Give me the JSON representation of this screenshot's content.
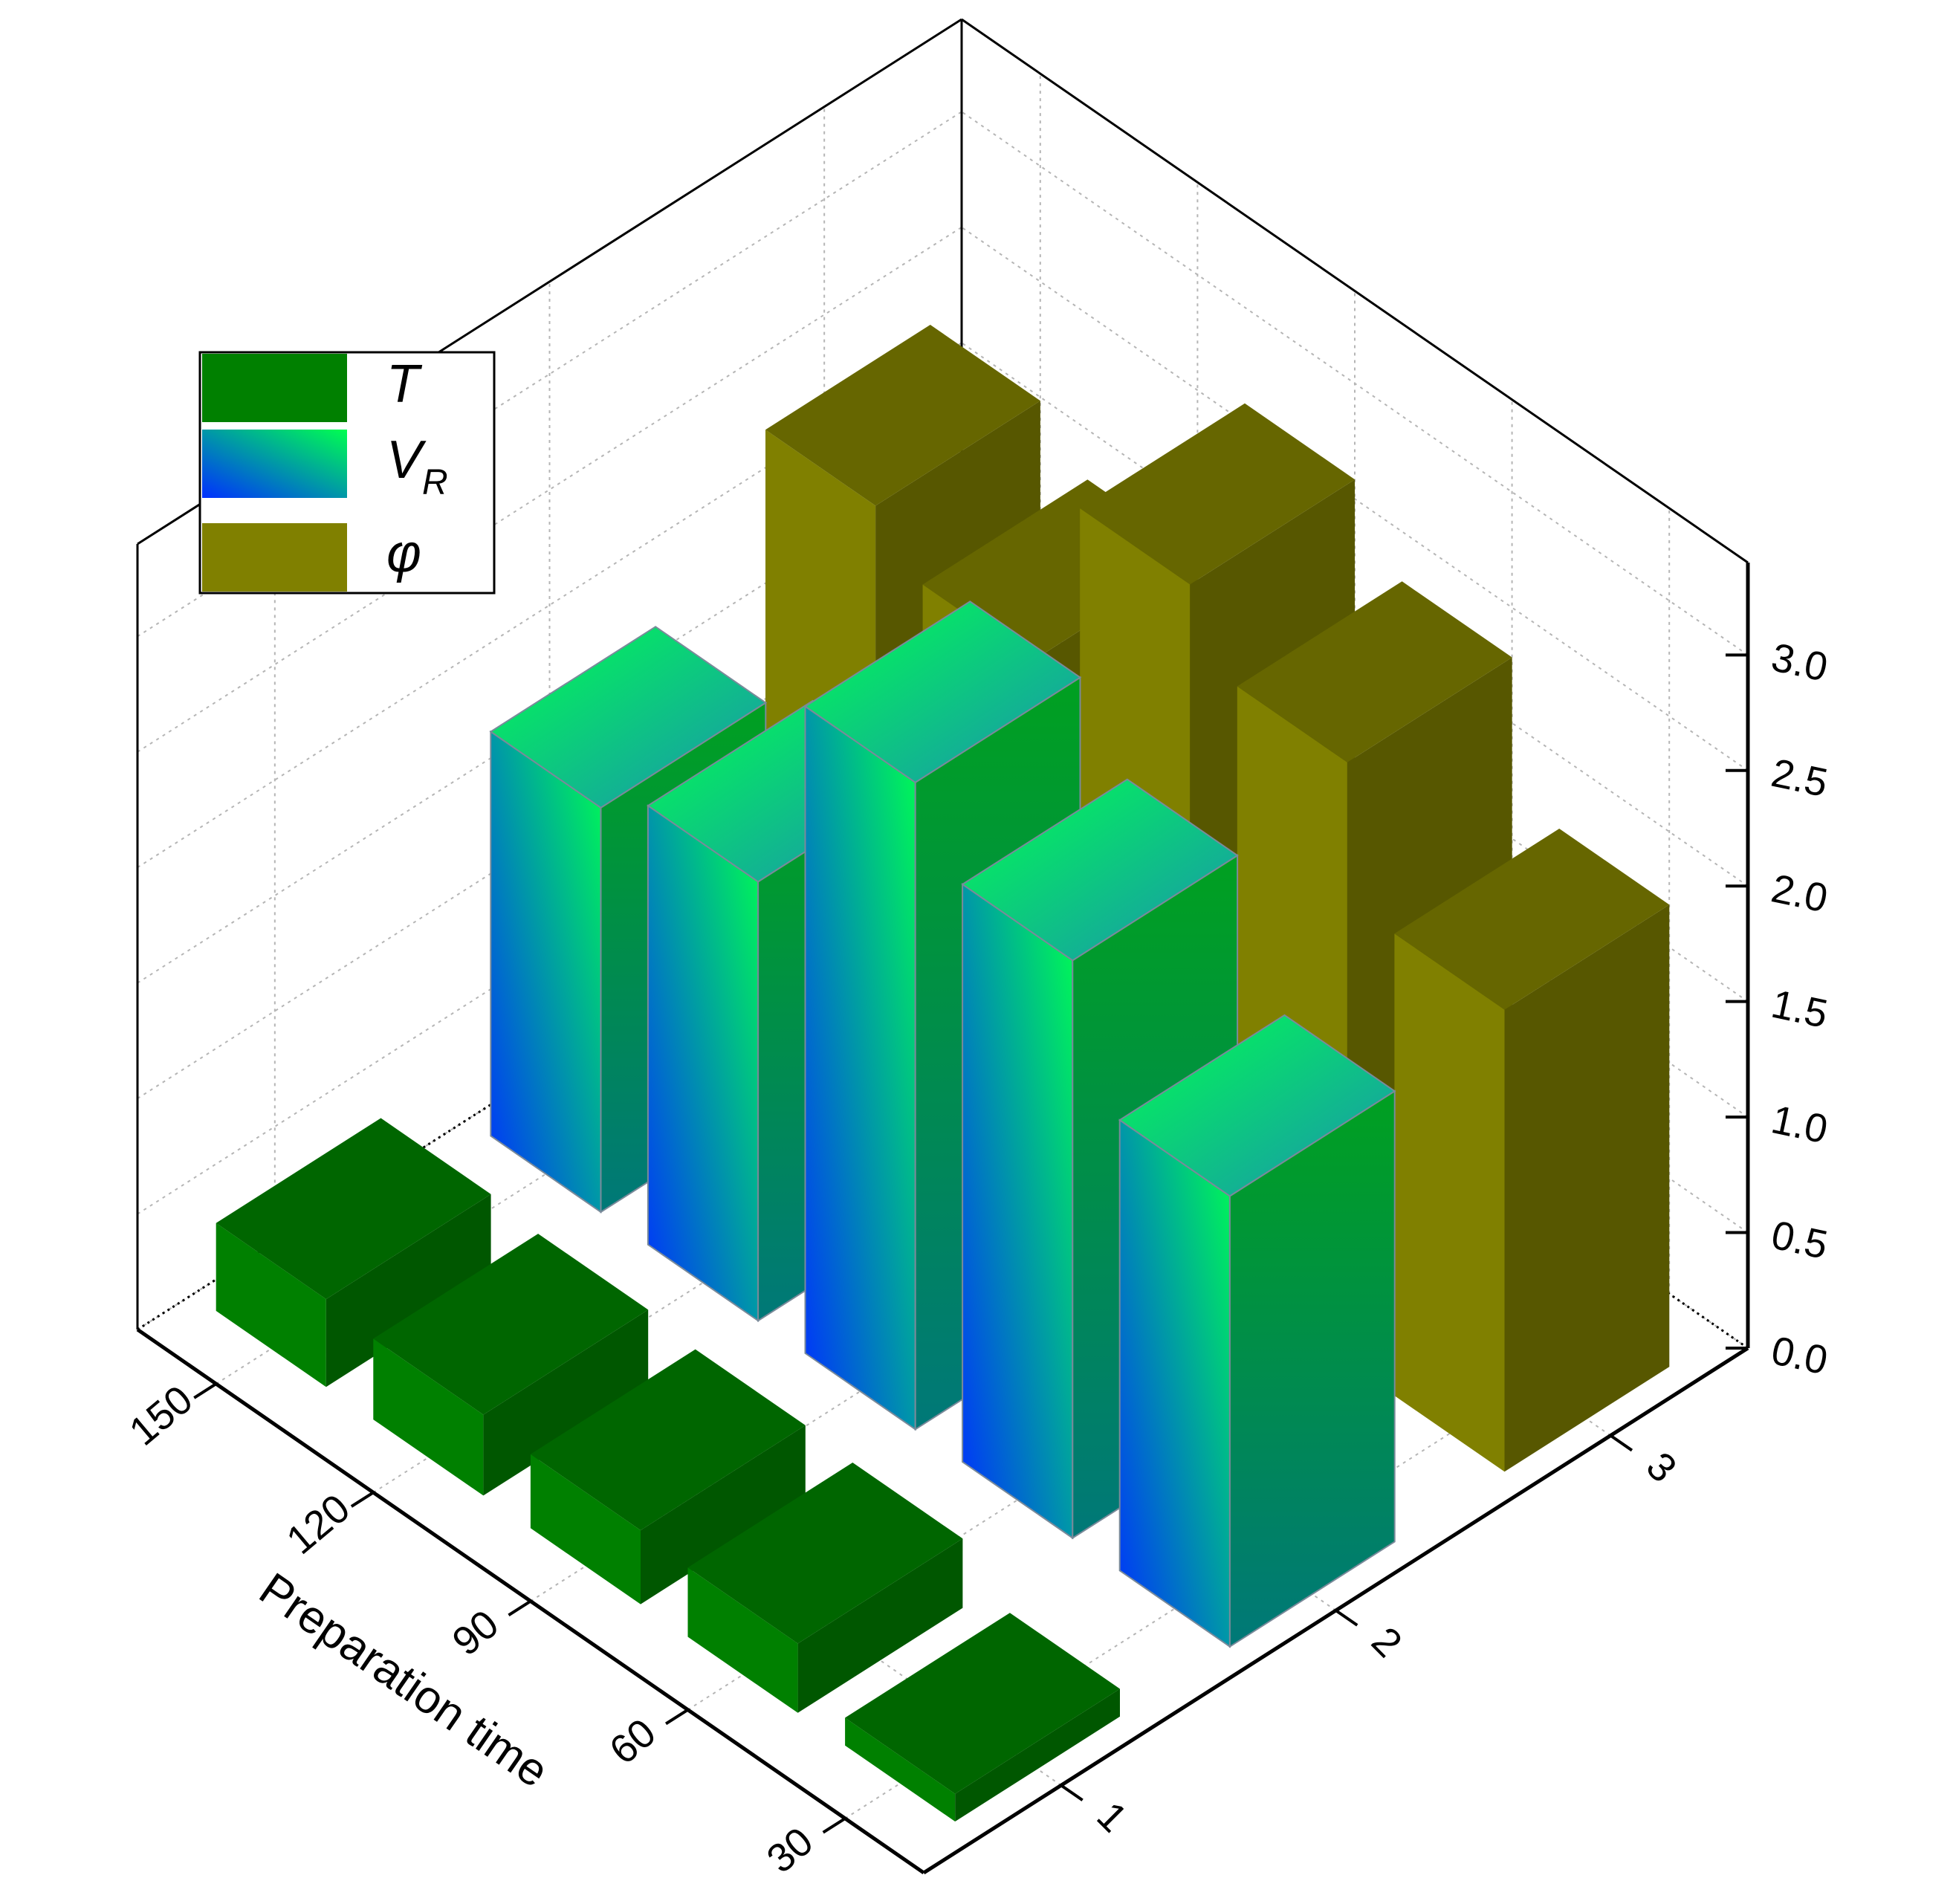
{
  "chart_data": {
    "type": "bar3d",
    "x_label": "Preparation time",
    "categories": [
      "30",
      "60",
      "90",
      "120",
      "150"
    ],
    "depth_categories": [
      "1",
      "2",
      "3"
    ],
    "series": [
      {
        "name": "T",
        "color": "#008000",
        "values": [
          0.12,
          0.3,
          0.32,
          0.35,
          0.38
        ]
      },
      {
        "name": "VR",
        "color": "#00a020",
        "gradient": [
          "#0030ff",
          "#00ff50"
        ],
        "values": [
          1.95,
          2.5,
          2.8,
          1.9,
          1.75
        ]
      },
      {
        "name": "φ",
        "color": "#808000",
        "values": [
          2.0,
          2.6,
          2.9,
          2.1,
          2.3
        ]
      }
    ],
    "zlim": [
      0,
      3.4
    ],
    "zticks": [
      {
        "value": 0,
        "label": "0.0"
      },
      0.5,
      {
        "value": 1,
        "label": "1.0"
      },
      1.5,
      {
        "value": 2,
        "label": "2.0"
      },
      2.5,
      {
        "value": 3,
        "label": "3.0"
      }
    ],
    "grid": true,
    "legend": "upper left"
  }
}
